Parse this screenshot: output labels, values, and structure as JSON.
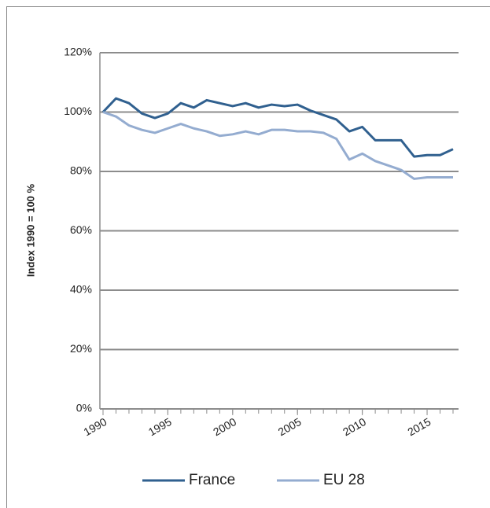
{
  "chart_data": {
    "type": "line",
    "x": [
      1990,
      1991,
      1992,
      1993,
      1994,
      1995,
      1996,
      1997,
      1998,
      1999,
      2000,
      2001,
      2002,
      2003,
      2004,
      2005,
      2006,
      2007,
      2008,
      2009,
      2010,
      2011,
      2012,
      2013,
      2014,
      2015,
      2016,
      2017
    ],
    "series": [
      {
        "name": "France",
        "color": "#30608f",
        "values": [
          100,
          104.6,
          103,
          99.5,
          98,
          99.5,
          103,
          101.5,
          104,
          103,
          102,
          103,
          101.5,
          102.5,
          102,
          102.5,
          100.5,
          99,
          97.5,
          93.5,
          95,
          90.5,
          90.5,
          90.5,
          85,
          85.5,
          85.5,
          87.5
        ]
      },
      {
        "name": "EU 28",
        "color": "#94acd0",
        "values": [
          100,
          98.5,
          95.5,
          94,
          93,
          94.5,
          96,
          94.5,
          93.5,
          92,
          92.5,
          93.5,
          92.5,
          94,
          94,
          93.5,
          93.5,
          93,
          91,
          84,
          86,
          83.5,
          82,
          80.5,
          77.5,
          78,
          78,
          78
        ]
      }
    ],
    "ylabel": "Index 1990 = 100 %",
    "xlim": [
      1990,
      2017
    ],
    "xticks": [
      1990,
      1995,
      2000,
      2005,
      2010,
      2015
    ],
    "ylim": [
      0,
      120
    ],
    "yticks": [
      {
        "value": 0,
        "label": "0%"
      },
      {
        "value": 20,
        "label": "20%"
      },
      {
        "value": 40,
        "label": "40%"
      },
      {
        "value": 60,
        "label": "60%"
      },
      {
        "value": 80,
        "label": "80%"
      },
      {
        "value": 100,
        "label": "100%"
      },
      {
        "value": 120,
        "label": "120%"
      }
    ],
    "grid": true,
    "legend": "bottom"
  }
}
